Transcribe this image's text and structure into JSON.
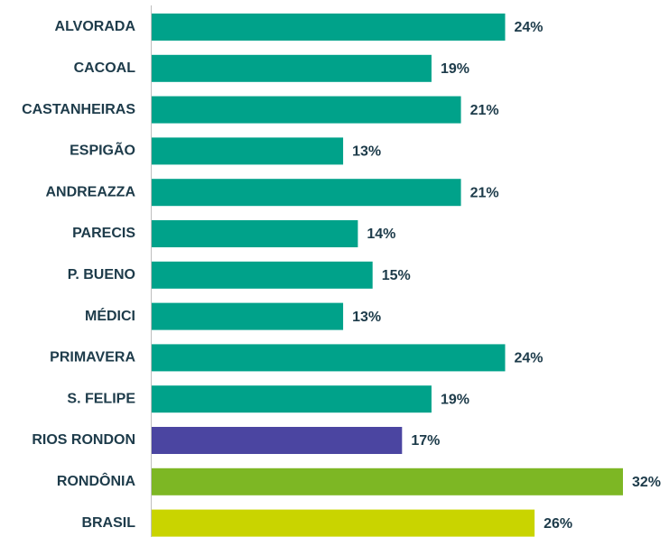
{
  "chart_data": {
    "type": "bar",
    "orientation": "horizontal",
    "categories": [
      "ALVORADA",
      "CACOAL",
      "CASTANHEIRAS",
      "ESPIGÃO",
      "ANDREAZZA",
      "PARECIS",
      "P. BUENO",
      "MÉDICI",
      "PRIMAVERA",
      "S. FELIPE",
      "RIOS RONDON",
      "RONDÔNIA",
      "BRASIL"
    ],
    "values": [
      24,
      19,
      21,
      13,
      21,
      14,
      15,
      13,
      24,
      19,
      17,
      32,
      26
    ],
    "value_labels": [
      "24%",
      "19%",
      "21%",
      "13%",
      "21%",
      "14%",
      "15%",
      "13%",
      "24%",
      "19%",
      "17%",
      "32%",
      "26%"
    ],
    "colors": [
      "#00a28a",
      "#00a28a",
      "#00a28a",
      "#00a28a",
      "#00a28a",
      "#00a28a",
      "#00a28a",
      "#00a28a",
      "#00a28a",
      "#00a28a",
      "#4b45a1",
      "#7db724",
      "#c9d400"
    ]
  }
}
